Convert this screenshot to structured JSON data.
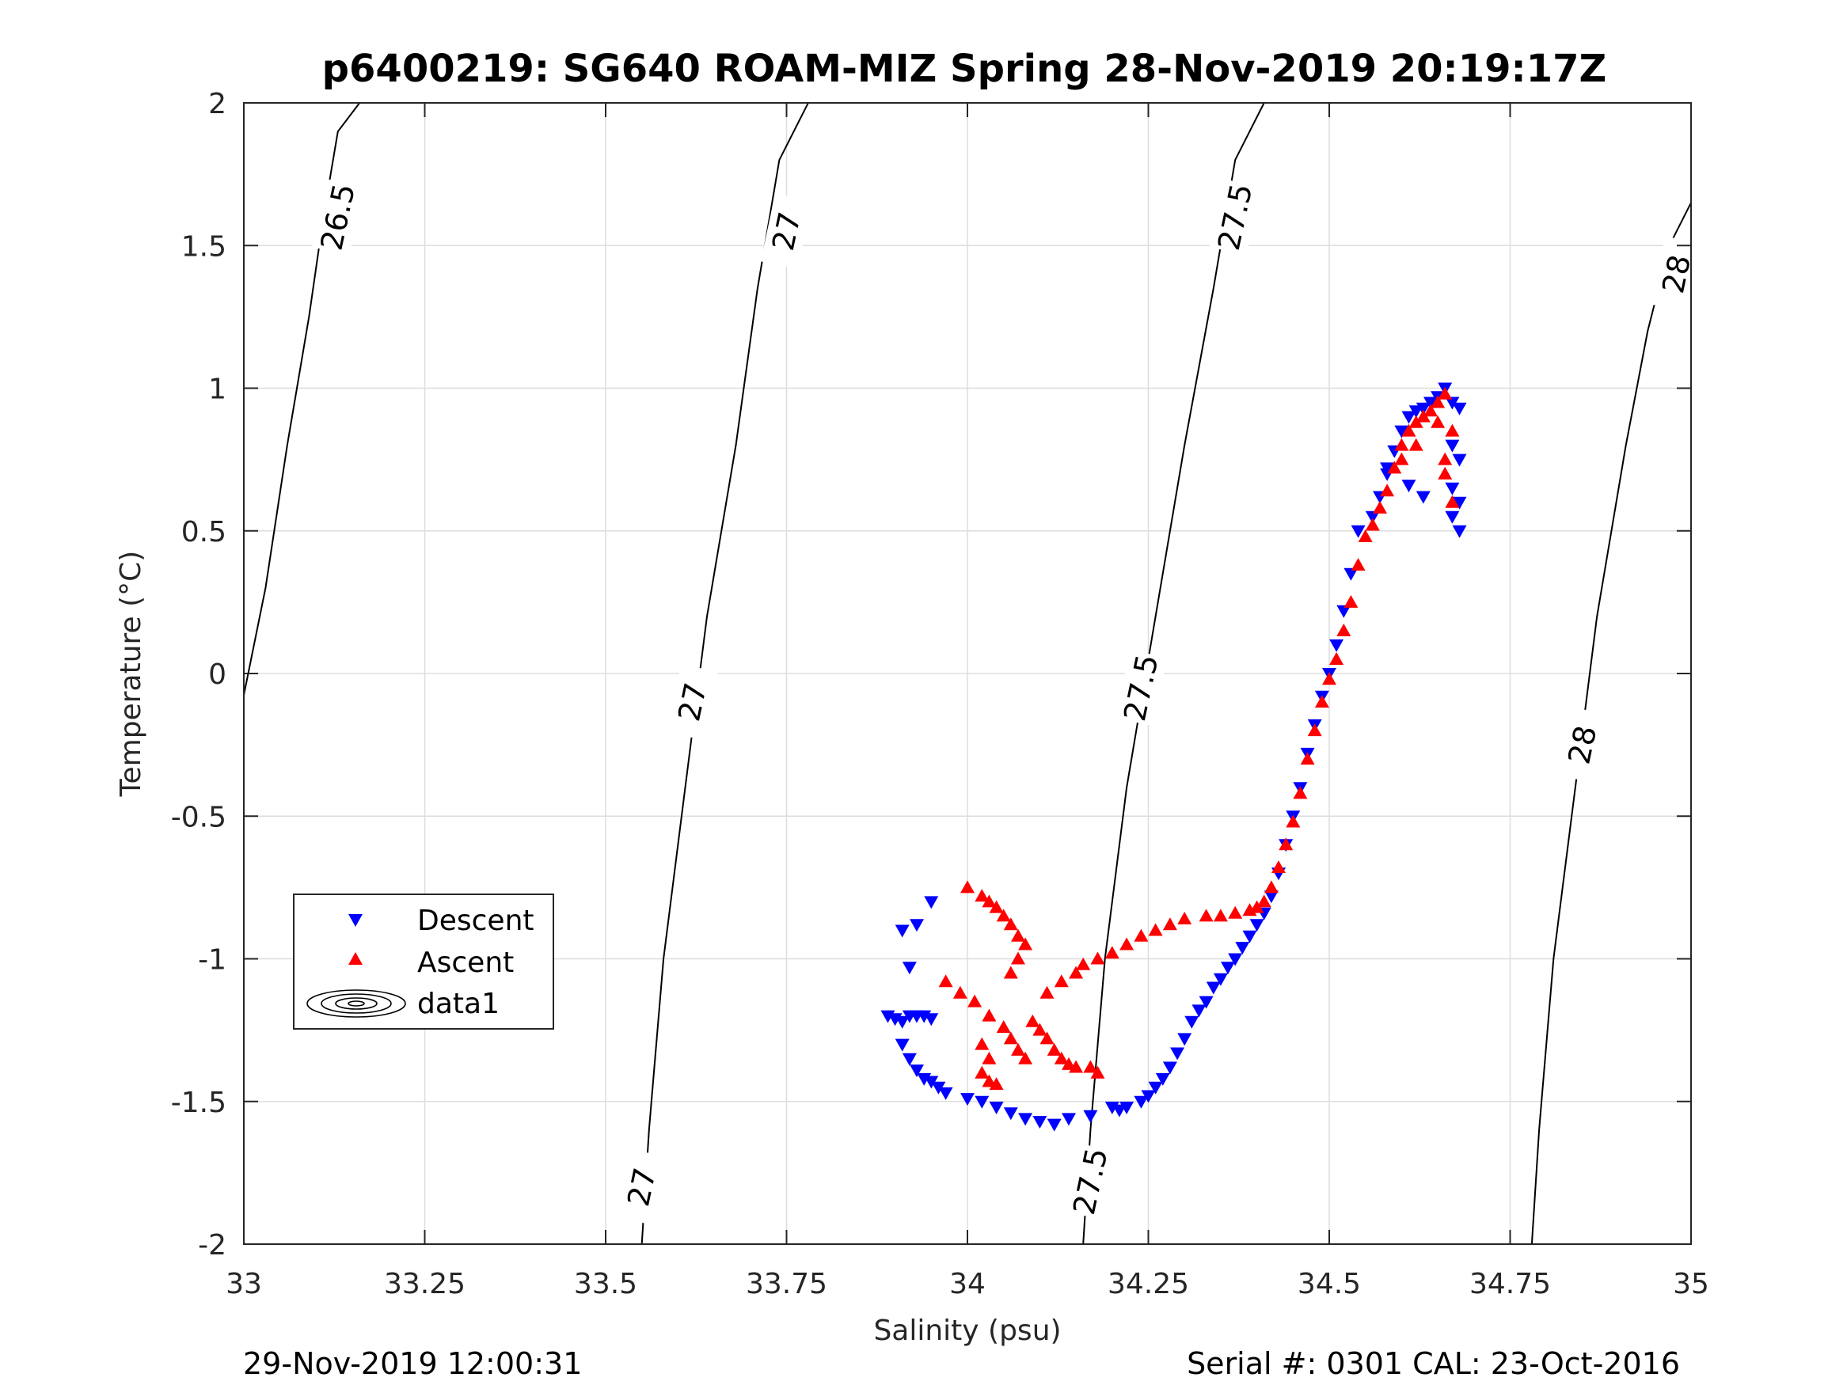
{
  "page": {
    "footer_left": "29-Nov-2019 12:00:31",
    "footer_right": "Serial #: 0301  CAL: 23-Oct-2016"
  },
  "chart_data": {
    "type": "scatter",
    "title": "p6400219: SG640 ROAM-MIZ Spring 28-Nov-2019 20:19:17Z",
    "xlabel": "Salinity (psu)",
    "ylabel": "Temperature (°C)",
    "xlim": [
      33,
      35
    ],
    "ylim": [
      -2,
      2
    ],
    "xticks": [
      33,
      33.25,
      33.5,
      33.75,
      34,
      34.25,
      34.5,
      34.75,
      35
    ],
    "xtick_labels": [
      "33",
      "33.25",
      "33.5",
      "33.75",
      "34",
      "34.25",
      "34.5",
      "34.75",
      "35"
    ],
    "yticks": [
      -2,
      -1.5,
      -1,
      -0.5,
      0,
      0.5,
      1,
      1.5,
      2
    ],
    "ytick_labels": [
      "-2",
      "-1.5",
      "-1",
      "-0.5",
      "0",
      "0.5",
      "1",
      "1.5",
      "2"
    ],
    "grid": true,
    "legend_position": "lower-left",
    "legend": [
      "Descent",
      "Ascent",
      "data1"
    ],
    "contours": [
      {
        "level": "26.5",
        "points": [
          [
            32.99,
            -0.2
          ],
          [
            33.03,
            0.3
          ],
          [
            33.06,
            0.8
          ],
          [
            33.09,
            1.25
          ],
          [
            33.11,
            1.6
          ],
          [
            33.13,
            1.9
          ],
          [
            33.16,
            2.0
          ]
        ],
        "labels": [
          {
            "s": 33.13,
            "t": 1.6,
            "text": "26.5"
          }
        ]
      },
      {
        "level": "27",
        "points": [
          [
            33.55,
            -2.0
          ],
          [
            33.56,
            -1.6
          ],
          [
            33.58,
            -1.0
          ],
          [
            33.61,
            -0.4
          ],
          [
            33.64,
            0.2
          ],
          [
            33.68,
            0.8
          ],
          [
            33.71,
            1.35
          ],
          [
            33.74,
            1.8
          ],
          [
            33.78,
            2.0
          ]
        ],
        "labels": [
          {
            "s": 33.55,
            "t": -1.8,
            "text": "27"
          },
          {
            "s": 33.62,
            "t": -0.1,
            "text": "27"
          },
          {
            "s": 33.75,
            "t": 1.55,
            "text": "27"
          }
        ]
      },
      {
        "level": "27.5",
        "points": [
          [
            34.16,
            -2.0
          ],
          [
            34.17,
            -1.6
          ],
          [
            34.19,
            -1.0
          ],
          [
            34.22,
            -0.4
          ],
          [
            34.26,
            0.2
          ],
          [
            34.3,
            0.8
          ],
          [
            34.34,
            1.35
          ],
          [
            34.37,
            1.8
          ],
          [
            34.41,
            2.0
          ]
        ],
        "labels": [
          {
            "s": 34.17,
            "t": -1.78,
            "text": "27.5"
          },
          {
            "s": 34.24,
            "t": -0.05,
            "text": "27.5"
          },
          {
            "s": 34.37,
            "t": 1.6,
            "text": "27.5"
          }
        ]
      },
      {
        "level": "28",
        "points": [
          [
            34.78,
            -2.0
          ],
          [
            34.79,
            -1.6
          ],
          [
            34.81,
            -1.0
          ],
          [
            34.84,
            -0.4
          ],
          [
            34.87,
            0.2
          ],
          [
            34.91,
            0.8
          ],
          [
            34.94,
            1.2
          ],
          [
            34.97,
            1.5
          ],
          [
            35.0,
            1.65
          ]
        ],
        "labels": [
          {
            "s": 34.85,
            "t": -0.25,
            "text": "28"
          },
          {
            "s": 34.98,
            "t": 1.4,
            "text": "28"
          }
        ]
      }
    ],
    "series": [
      {
        "name": "Descent",
        "marker": "triangle-down",
        "color": "#0000ff",
        "points": [
          [
            33.95,
            -0.8
          ],
          [
            33.93,
            -0.88
          ],
          [
            33.91,
            -0.9
          ],
          [
            33.92,
            -1.03
          ],
          [
            33.89,
            -1.2
          ],
          [
            33.9,
            -1.21
          ],
          [
            33.91,
            -1.22
          ],
          [
            33.92,
            -1.2
          ],
          [
            33.93,
            -1.2
          ],
          [
            33.94,
            -1.2
          ],
          [
            33.95,
            -1.21
          ],
          [
            33.91,
            -1.3
          ],
          [
            33.92,
            -1.35
          ],
          [
            33.93,
            -1.39
          ],
          [
            33.94,
            -1.42
          ],
          [
            33.95,
            -1.43
          ],
          [
            33.96,
            -1.45
          ],
          [
            33.97,
            -1.47
          ],
          [
            34.0,
            -1.49
          ],
          [
            34.02,
            -1.5
          ],
          [
            34.04,
            -1.52
          ],
          [
            34.06,
            -1.54
          ],
          [
            34.08,
            -1.56
          ],
          [
            34.1,
            -1.57
          ],
          [
            34.12,
            -1.58
          ],
          [
            34.14,
            -1.56
          ],
          [
            34.17,
            -1.55
          ],
          [
            34.2,
            -1.52
          ],
          [
            34.21,
            -1.53
          ],
          [
            34.22,
            -1.52
          ],
          [
            34.24,
            -1.5
          ],
          [
            34.25,
            -1.48
          ],
          [
            34.26,
            -1.45
          ],
          [
            34.27,
            -1.42
          ],
          [
            34.28,
            -1.38
          ],
          [
            34.29,
            -1.33
          ],
          [
            34.3,
            -1.28
          ],
          [
            34.31,
            -1.22
          ],
          [
            34.32,
            -1.18
          ],
          [
            34.33,
            -1.15
          ],
          [
            34.34,
            -1.1
          ],
          [
            34.35,
            -1.07
          ],
          [
            34.36,
            -1.03
          ],
          [
            34.37,
            -1.0
          ],
          [
            34.38,
            -0.96
          ],
          [
            34.39,
            -0.92
          ],
          [
            34.4,
            -0.88
          ],
          [
            34.41,
            -0.84
          ],
          [
            34.42,
            -0.78
          ],
          [
            34.43,
            -0.7
          ],
          [
            34.44,
            -0.6
          ],
          [
            34.45,
            -0.5
          ],
          [
            34.46,
            -0.4
          ],
          [
            34.47,
            -0.28
          ],
          [
            34.48,
            -0.18
          ],
          [
            34.49,
            -0.08
          ],
          [
            34.5,
            0.0
          ],
          [
            34.51,
            0.1
          ],
          [
            34.52,
            0.22
          ],
          [
            34.53,
            0.35
          ],
          [
            34.54,
            0.5
          ],
          [
            34.56,
            0.55
          ],
          [
            34.57,
            0.62
          ],
          [
            34.58,
            0.7
          ],
          [
            34.59,
            0.78
          ],
          [
            34.6,
            0.85
          ],
          [
            34.61,
            0.9
          ],
          [
            34.62,
            0.92
          ],
          [
            34.63,
            0.93
          ],
          [
            34.64,
            0.95
          ],
          [
            34.65,
            0.97
          ],
          [
            34.66,
            1.0
          ],
          [
            34.67,
            0.95
          ],
          [
            34.68,
            0.93
          ],
          [
            34.67,
            0.8
          ],
          [
            34.68,
            0.75
          ],
          [
            34.67,
            0.65
          ],
          [
            34.68,
            0.6
          ],
          [
            34.67,
            0.55
          ],
          [
            34.68,
            0.5
          ],
          [
            34.63,
            0.62
          ],
          [
            34.61,
            0.66
          ],
          [
            34.58,
            0.72
          ]
        ]
      },
      {
        "name": "Ascent",
        "marker": "triangle-up",
        "color": "#ff0000",
        "points": [
          [
            34.0,
            -0.75
          ],
          [
            34.02,
            -0.78
          ],
          [
            34.03,
            -0.8
          ],
          [
            34.04,
            -0.82
          ],
          [
            34.05,
            -0.85
          ],
          [
            34.06,
            -0.88
          ],
          [
            34.07,
            -0.92
          ],
          [
            34.08,
            -0.95
          ],
          [
            34.07,
            -1.0
          ],
          [
            34.06,
            -1.05
          ],
          [
            33.97,
            -1.08
          ],
          [
            33.99,
            -1.12
          ],
          [
            34.01,
            -1.15
          ],
          [
            34.03,
            -1.2
          ],
          [
            34.05,
            -1.24
          ],
          [
            34.06,
            -1.28
          ],
          [
            34.07,
            -1.32
          ],
          [
            34.08,
            -1.35
          ],
          [
            34.1,
            -1.25
          ],
          [
            34.11,
            -1.28
          ],
          [
            34.12,
            -1.32
          ],
          [
            34.13,
            -1.35
          ],
          [
            34.14,
            -1.37
          ],
          [
            34.15,
            -1.38
          ],
          [
            34.17,
            -1.38
          ],
          [
            34.18,
            -1.4
          ],
          [
            34.02,
            -1.4
          ],
          [
            34.03,
            -1.43
          ],
          [
            34.04,
            -1.44
          ],
          [
            34.02,
            -1.3
          ],
          [
            34.03,
            -1.35
          ],
          [
            34.09,
            -1.22
          ],
          [
            34.11,
            -1.12
          ],
          [
            34.13,
            -1.08
          ],
          [
            34.15,
            -1.05
          ],
          [
            34.16,
            -1.02
          ],
          [
            34.18,
            -1.0
          ],
          [
            34.2,
            -0.98
          ],
          [
            34.22,
            -0.95
          ],
          [
            34.24,
            -0.92
          ],
          [
            34.26,
            -0.9
          ],
          [
            34.28,
            -0.88
          ],
          [
            34.3,
            -0.86
          ],
          [
            34.33,
            -0.85
          ],
          [
            34.35,
            -0.85
          ],
          [
            34.37,
            -0.84
          ],
          [
            34.39,
            -0.83
          ],
          [
            34.4,
            -0.82
          ],
          [
            34.41,
            -0.8
          ],
          [
            34.42,
            -0.75
          ],
          [
            34.43,
            -0.68
          ],
          [
            34.44,
            -0.6
          ],
          [
            34.45,
            -0.52
          ],
          [
            34.46,
            -0.42
          ],
          [
            34.47,
            -0.3
          ],
          [
            34.48,
            -0.2
          ],
          [
            34.49,
            -0.1
          ],
          [
            34.5,
            -0.02
          ],
          [
            34.51,
            0.05
          ],
          [
            34.52,
            0.15
          ],
          [
            34.53,
            0.25
          ],
          [
            34.54,
            0.38
          ],
          [
            34.55,
            0.48
          ],
          [
            34.56,
            0.52
          ],
          [
            34.57,
            0.58
          ],
          [
            34.58,
            0.64
          ],
          [
            34.59,
            0.72
          ],
          [
            34.6,
            0.8
          ],
          [
            34.61,
            0.85
          ],
          [
            34.62,
            0.88
          ],
          [
            34.63,
            0.9
          ],
          [
            34.64,
            0.92
          ],
          [
            34.65,
            0.95
          ],
          [
            34.66,
            0.98
          ],
          [
            34.67,
            0.85
          ],
          [
            34.66,
            0.75
          ],
          [
            34.67,
            0.6
          ],
          [
            34.66,
            0.7
          ],
          [
            34.65,
            0.88
          ],
          [
            34.62,
            0.8
          ],
          [
            34.6,
            0.75
          ]
        ]
      }
    ]
  }
}
